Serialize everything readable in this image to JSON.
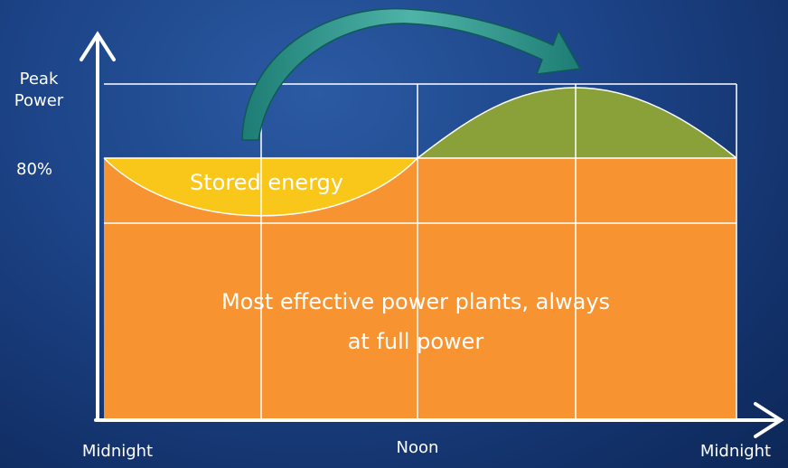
{
  "y_axis": {
    "label": "Peak Power",
    "mark": "80%"
  },
  "x_axis": {
    "labels": [
      "Midnight",
      "Noon",
      "Midnight"
    ]
  },
  "regions": {
    "stored": "Stored energy",
    "base": "Most effective power plants, always at full power"
  }
}
